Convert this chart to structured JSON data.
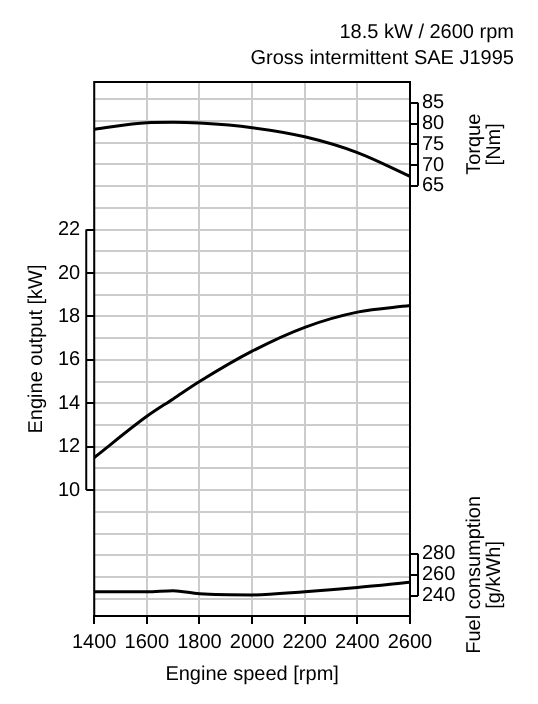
{
  "chart_data": {
    "type": "line",
    "title": "18.5 kW / 2600 rpm",
    "subtitle": "Gross intermittent SAE J1995",
    "xlabel": "Engine speed [rpm]",
    "ylabel": "Engine output [kW]",
    "y2label": "Torque [Nm]",
    "y3label": "Fuel consumption [g/kWh]",
    "x": [
      1400,
      1600,
      1700,
      1800,
      2000,
      2200,
      2400,
      2600
    ],
    "series": [
      {
        "color": "#000000",
        "axis": "y2",
        "values": [
          78.6,
          80.2,
          80.3,
          80.1,
          79.0,
          76.8,
          73.0,
          67.3
        ]
      },
      {
        "color": "#000000",
        "values": [
          11.5,
          13.4,
          14.2,
          15.0,
          16.4,
          17.5,
          18.2,
          18.5
        ]
      },
      {
        "color": "#000000",
        "axis": "y3",
        "values": [
          244,
          244,
          245,
          242,
          241,
          244,
          248,
          253
        ]
      }
    ],
    "xlim": [
      1400,
      2600
    ],
    "xticks": [
      1400,
      1600,
      1800,
      2000,
      2200,
      2400,
      2600
    ],
    "ylim": [
      4.2,
      28.8
    ],
    "yticks": [
      {
        "value": 5,
        "label": null
      },
      {
        "value": 6,
        "label": null
      },
      {
        "value": 7,
        "label": null
      },
      {
        "value": 8,
        "label": null
      },
      {
        "value": 9,
        "label": null
      },
      10,
      {
        "value": 11,
        "label": null
      },
      12,
      {
        "value": 13,
        "label": null
      },
      14,
      {
        "value": 15,
        "label": null
      },
      16,
      {
        "value": 17,
        "label": null
      },
      18,
      {
        "value": 19,
        "label": null
      },
      20,
      {
        "value": 21,
        "label": null
      },
      22,
      {
        "value": 23,
        "label": null
      },
      {
        "value": 24,
        "label": null
      },
      {
        "value": 25,
        "label": null
      },
      {
        "value": 26,
        "label": null
      },
      {
        "value": 27,
        "label": null
      },
      {
        "value": 28,
        "label": null
      }
    ],
    "y2lim": [
      -38.6,
      90
    ],
    "y2ticks": [
      65,
      70,
      75,
      80,
      85
    ],
    "y3lim": [
      221,
      727
    ],
    "y3ticks": [
      240,
      260,
      280
    ],
    "grid": true,
    "legend": false,
    "marker": "none",
    "line_style": "solid"
  }
}
